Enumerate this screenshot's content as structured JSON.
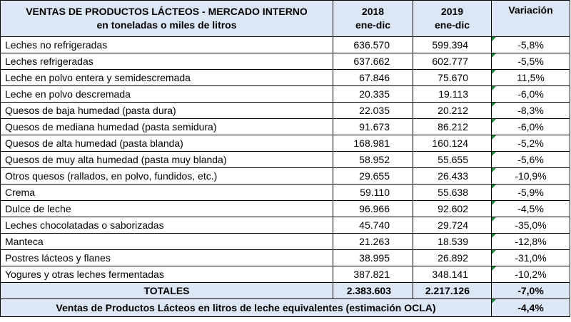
{
  "header": {
    "title_line1": "VENTAS DE PRODUCTOS LÁCTEOS - MERCADO INTERNO",
    "title_line2": "en toneladas o miles de litros",
    "col_2018_year": "2018",
    "col_2018_period": "ene-dic",
    "col_2019_year": "2019",
    "col_2019_period": "ene-dic",
    "col_variation": "Variación"
  },
  "rows": [
    {
      "product": "Leches no refrigeradas",
      "v2018": "636.570",
      "v2019": "599.394",
      "variation": "-5,8%"
    },
    {
      "product": "Leches refrigeradas",
      "v2018": "637.662",
      "v2019": "602.777",
      "variation": "-5,5%"
    },
    {
      "product": "Leche en polvo entera y semidescremada",
      "v2018": "67.846",
      "v2019": "75.670",
      "variation": "11,5%"
    },
    {
      "product": "Leche en polvo descremada",
      "v2018": "20.335",
      "v2019": "19.113",
      "variation": "-6,0%"
    },
    {
      "product": "Quesos de baja humedad (pasta dura)",
      "v2018": "22.035",
      "v2019": "20.212",
      "variation": "-8,3%"
    },
    {
      "product": "Quesos de mediana humedad (pasta semidura)",
      "v2018": "91.673",
      "v2019": "86.212",
      "variation": "-6,0%"
    },
    {
      "product": "Quesos de alta humedad (pasta blanda)",
      "v2018": "168.981",
      "v2019": "160.124",
      "variation": "-5,2%"
    },
    {
      "product": "Quesos de muy alta humedad (pasta muy blanda)",
      "v2018": "58.952",
      "v2019": "55.655",
      "variation": "-5,6%"
    },
    {
      "product": "Otros quesos (rallados, en polvo, fundidos, etc.)",
      "v2018": "29.655",
      "v2019": "26.433",
      "variation": "-10,9%"
    },
    {
      "product": "Crema",
      "v2018": "59.110",
      "v2019": "55.638",
      "variation": "-5,9%"
    },
    {
      "product": "Dulce de leche",
      "v2018": "96.966",
      "v2019": "92.602",
      "variation": "-4,5%"
    },
    {
      "product": "Leches chocolatadas o saborizadas",
      "v2018": "45.740",
      "v2019": "29.724",
      "variation": "-35,0%"
    },
    {
      "product": "Manteca",
      "v2018": "21.263",
      "v2019": "18.539",
      "variation": "-12,8%"
    },
    {
      "product": "Postres lácteos y flanes",
      "v2018": "38.995",
      "v2019": "26.892",
      "variation": "-31,0%"
    },
    {
      "product": "Yogures y otras leches fermentadas",
      "v2018": "387.821",
      "v2019": "348.141",
      "variation": "-10,2%"
    }
  ],
  "totals": {
    "label": "TOTALES",
    "v2018": "2.383.603",
    "v2019": "2.217.126",
    "variation": "-7,0%"
  },
  "footer": {
    "label": "Ventas de Productos Lácteos en litros de leche equivalentes (estimación OCLA)",
    "variation": "-4,4%"
  },
  "colors": {
    "header_bg": "#dbe7f4",
    "marker": "#1e8a3a"
  }
}
